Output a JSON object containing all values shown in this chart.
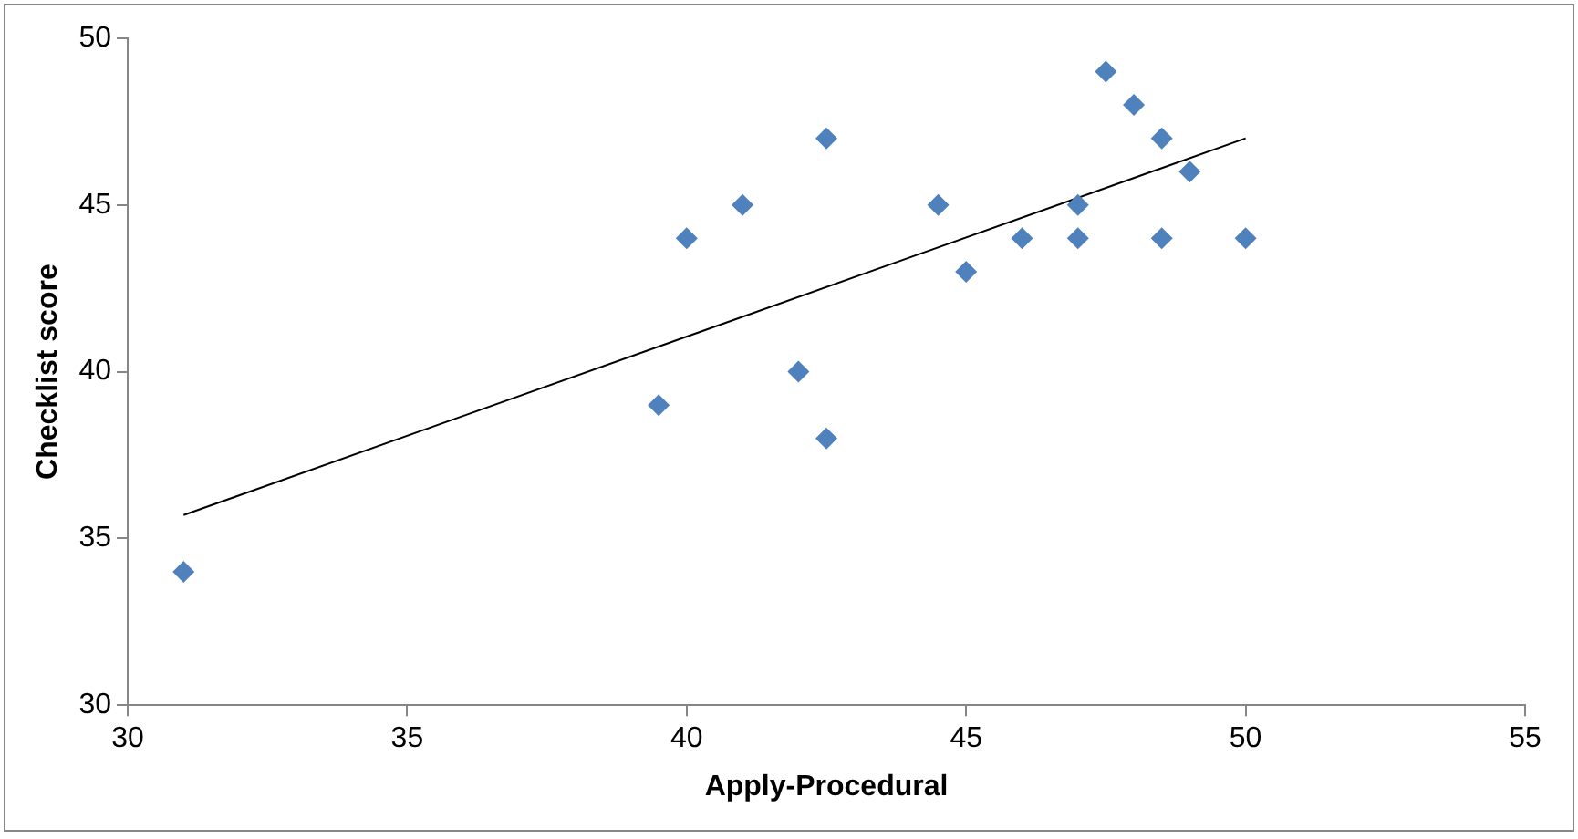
{
  "chart_data": {
    "type": "scatter",
    "xlabel": "Apply-Procedural",
    "ylabel": "Checklist score",
    "xlim": [
      30,
      55
    ],
    "xticks": [
      30,
      35,
      40,
      45,
      50,
      55
    ],
    "ylim": [
      30,
      50
    ],
    "yticks": [
      30,
      35,
      40,
      45,
      50
    ],
    "grid": false,
    "legend": false,
    "series": [
      {
        "color": "#4f81bd",
        "marker": "diamond",
        "x": [
          31,
          39.5,
          40,
          41,
          42,
          42.5,
          42.5,
          44.5,
          45,
          46,
          47,
          47,
          47.5,
          48,
          48.5,
          48.5,
          49,
          50
        ],
        "values": [
          34,
          39,
          44,
          45,
          40,
          47,
          38,
          45,
          43,
          44,
          45,
          44,
          49,
          48,
          47,
          44,
          46,
          44
        ]
      },
      {
        "type": "line",
        "color": "#000000",
        "marker": "none",
        "line_style": "solid",
        "x": [
          31,
          50
        ],
        "values": [
          35.7,
          47
        ]
      }
    ]
  }
}
